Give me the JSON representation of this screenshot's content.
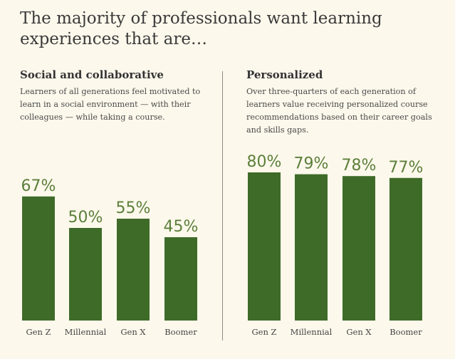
{
  "title": "The majority of professionals want learning experiences that are…",
  "panels": [
    {
      "heading": "Social and collaborative",
      "description": "Learners of all generations feel motivated to learn in a social environment — with their colleagues — while taking a course."
    },
    {
      "heading": "Personalized",
      "description": "Over three-quarters of each generation of learners value receiving personalized course recommendations based on their career goals and skills gaps."
    }
  ],
  "colors": {
    "bar": "#3f6b29",
    "label": "#5b7f3a",
    "background": "#fdf8ec"
  },
  "chart_data": [
    {
      "type": "bar",
      "title": "Social and collaborative",
      "categories": [
        "Gen Z",
        "Millennial",
        "Gen X",
        "Boomer"
      ],
      "values": [
        67,
        50,
        55,
        45
      ],
      "value_labels": [
        "67%",
        "50%",
        "55%",
        "45%"
      ],
      "ylim": [
        0,
        100
      ],
      "grid": false
    },
    {
      "type": "bar",
      "title": "Personalized",
      "categories": [
        "Gen Z",
        "Millennial",
        "Gen X",
        "Boomer"
      ],
      "values": [
        80,
        79,
        78,
        77
      ],
      "value_labels": [
        "80%",
        "79%",
        "78%",
        "77%"
      ],
      "ylim": [
        0,
        100
      ],
      "grid": false
    }
  ]
}
